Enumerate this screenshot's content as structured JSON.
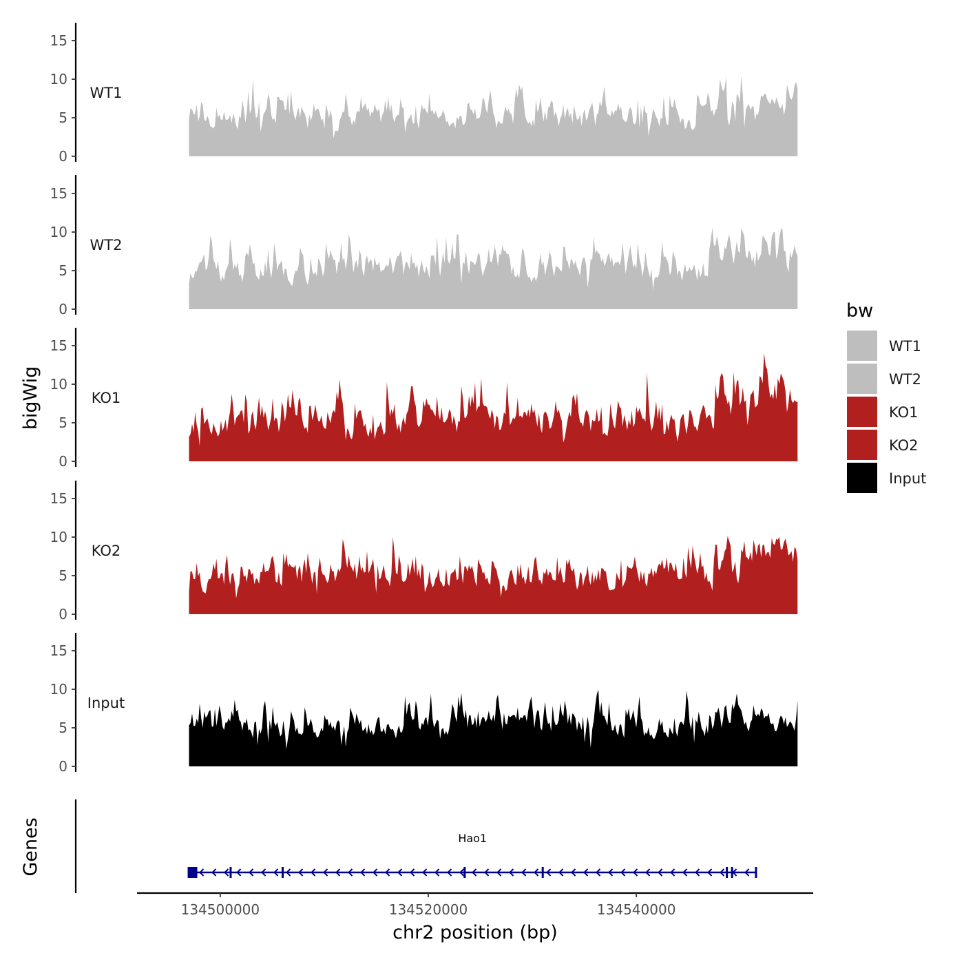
{
  "chart_data": {
    "type": "area",
    "title": "",
    "xlabel": "chr2 position (bp)",
    "ylabel": "bigWig",
    "genes_panel_label": "Genes",
    "x_range": [
      134497000,
      134555500
    ],
    "xlim": [
      134492000,
      134557000
    ],
    "x_ticks": [
      134500000,
      134520000,
      134540000
    ],
    "x_tick_labels": [
      "134500000",
      "134520000",
      "134540000"
    ],
    "ylim": [
      0,
      17
    ],
    "y_ticks": [
      0,
      5,
      10,
      15
    ],
    "y_tick_labels": [
      "0",
      "5",
      "10",
      "15"
    ],
    "grid": false,
    "legend": {
      "title": "bw",
      "position": "right",
      "entries": [
        {
          "name": "WT1",
          "color": "#bebebe"
        },
        {
          "name": "WT2",
          "color": "#bebebe"
        },
        {
          "name": "KO1",
          "color": "#b21f1f"
        },
        {
          "name": "KO2",
          "color": "#b21f1f"
        },
        {
          "name": "Input",
          "color": "#000000"
        }
      ]
    },
    "series": [
      {
        "name": "WT1",
        "color": "#bebebe",
        "base": 2.5,
        "amp": 4.5,
        "peak": 13,
        "tail_boost": 4,
        "seed": 11
      },
      {
        "name": "WT2",
        "color": "#bebebe",
        "base": 2.6,
        "amp": 4.6,
        "peak": 14,
        "tail_boost": 3,
        "seed": 23
      },
      {
        "name": "KO1",
        "color": "#b21f1f",
        "base": 2.4,
        "amp": 5.0,
        "peak": 16.5,
        "tail_boost": 6,
        "seed": 37
      },
      {
        "name": "KO2",
        "color": "#b21f1f",
        "base": 2.2,
        "amp": 5.0,
        "peak": 14.5,
        "tail_boost": 5,
        "seed": 53
      },
      {
        "name": "Input",
        "color": "#000000",
        "base": 3.0,
        "amp": 4.0,
        "peak": 13,
        "tail_boost": 0,
        "seed": 71
      }
    ],
    "gene": {
      "name": "Hao1",
      "start": 134497000,
      "end": 134551500,
      "strand": "-",
      "color": "#00008b",
      "exons": [
        134497000,
        134501000,
        134506000,
        134523500,
        134531000,
        134548700,
        134549200,
        134551500
      ]
    }
  }
}
